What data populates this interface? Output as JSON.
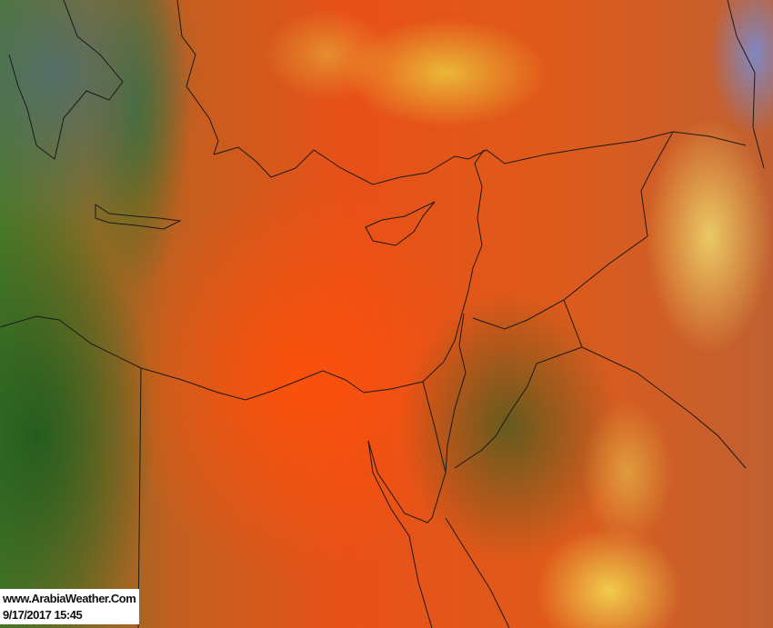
{
  "watermark": {
    "site": "www.ArabiaWeather.Com",
    "timestamp": "9/17/2017 15:45"
  },
  "colors": {
    "dust": "#e8501a",
    "vegetation": "#3a7a28",
    "cloud": "#eed060",
    "border": "#1a1a1a"
  }
}
